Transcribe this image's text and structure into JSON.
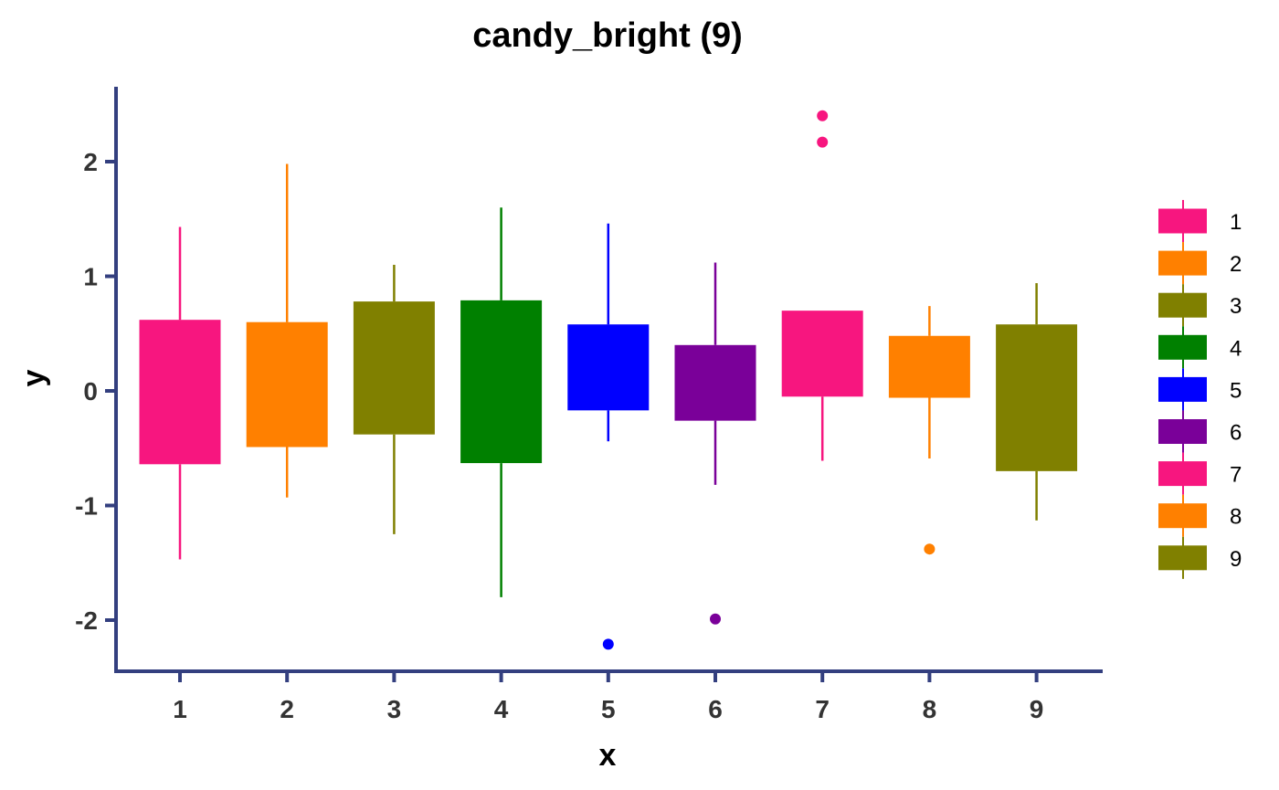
{
  "chart_data": {
    "type": "box",
    "title": "candy_bright (9)",
    "xlabel": "x",
    "ylabel": "y",
    "ylim": [
      -2.45,
      2.65
    ],
    "yticks": [
      -2,
      -1,
      0,
      1,
      2
    ],
    "ytick_labels": [
      "-2",
      "-1",
      "0",
      "1",
      "2"
    ],
    "categories": [
      "1",
      "2",
      "3",
      "4",
      "5",
      "6",
      "7",
      "8",
      "9"
    ],
    "grid": false,
    "legend_position": "right",
    "legend_labels": [
      "1",
      "2",
      "3",
      "4",
      "5",
      "6",
      "7",
      "8",
      "9"
    ],
    "colors": [
      "#F7167F",
      "#FF8000",
      "#808000",
      "#008000",
      "#0000FF",
      "#7A0099",
      "#F7167F",
      "#FF8000",
      "#808000"
    ],
    "axis_color": "#333F7F",
    "boxes": [
      {
        "category": "1",
        "whisker_low": -1.47,
        "q1": -0.64,
        "median": -0.64,
        "q3": 0.62,
        "whisker_high": 1.43,
        "outliers": []
      },
      {
        "category": "2",
        "whisker_low": -0.93,
        "q1": -0.49,
        "median": -0.49,
        "q3": 0.6,
        "whisker_high": 1.98,
        "outliers": []
      },
      {
        "category": "3",
        "whisker_low": -1.25,
        "q1": -0.38,
        "median": -0.38,
        "q3": 0.78,
        "whisker_high": 1.1,
        "outliers": []
      },
      {
        "category": "4",
        "whisker_low": -1.8,
        "q1": -0.63,
        "median": -0.63,
        "q3": 0.79,
        "whisker_high": 1.6,
        "outliers": []
      },
      {
        "category": "5",
        "whisker_low": -0.44,
        "q1": -0.17,
        "median": -0.17,
        "q3": 0.58,
        "whisker_high": 1.46,
        "outliers": [
          -2.21
        ]
      },
      {
        "category": "6",
        "whisker_low": -0.82,
        "q1": -0.26,
        "median": -0.26,
        "q3": 0.4,
        "whisker_high": 1.12,
        "outliers": [
          -1.99
        ]
      },
      {
        "category": "7",
        "whisker_low": -0.61,
        "q1": -0.05,
        "median": -0.05,
        "q3": 0.7,
        "whisker_high": 0.7,
        "outliers": [
          2.17,
          2.4
        ]
      },
      {
        "category": "8",
        "whisker_low": -0.59,
        "q1": -0.06,
        "median": -0.06,
        "q3": 0.48,
        "whisker_high": 0.74,
        "outliers": [
          -1.38
        ]
      },
      {
        "category": "9",
        "whisker_low": -1.13,
        "q1": -0.7,
        "median": -0.7,
        "q3": 0.58,
        "whisker_high": 0.94,
        "outliers": []
      }
    ]
  }
}
